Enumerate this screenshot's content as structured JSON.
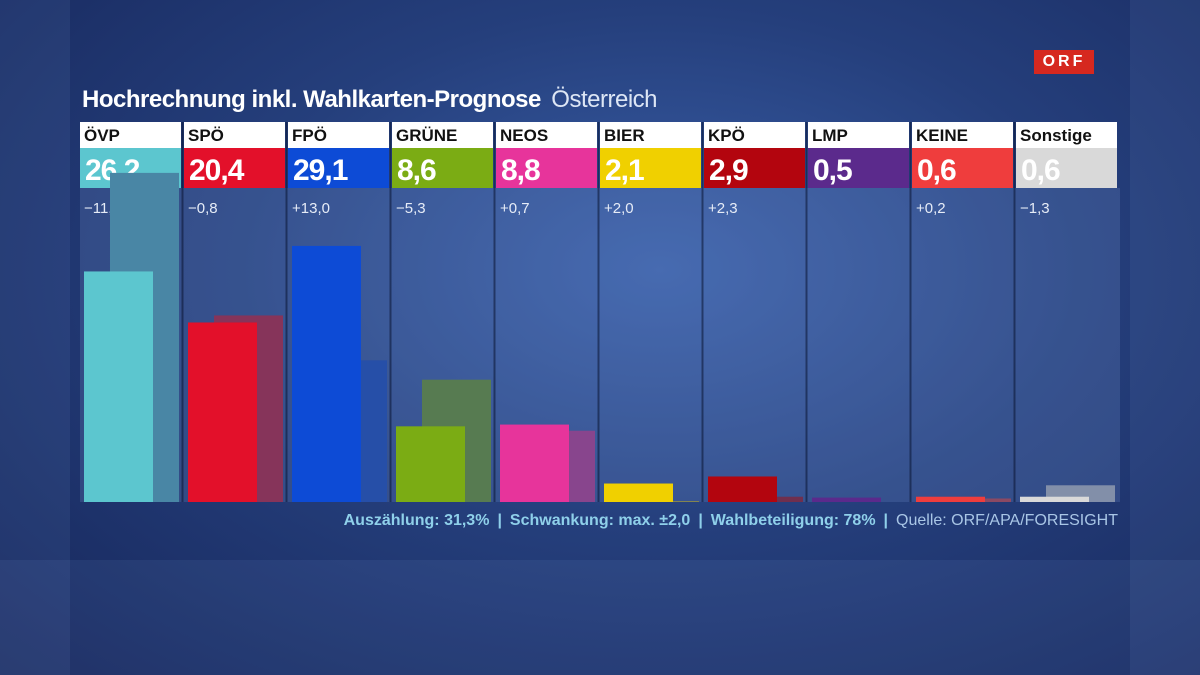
{
  "logo": "ORF",
  "title": "Hochrechnung inkl. Wahlkarten-Prognose",
  "subtitle": "Österreich",
  "chart_data": {
    "type": "bar",
    "ylim": [
      0,
      40
    ],
    "categories": [
      "ÖVP",
      "SPÖ",
      "FPÖ",
      "GRÜNE",
      "NEOS",
      "BIER",
      "KPÖ",
      "LMP",
      "KEINE",
      "Sonstige"
    ],
    "value_labels": [
      "26,2",
      "20,4",
      "29,1",
      "8,6",
      "8,8",
      "2,1",
      "2,9",
      "0,5",
      "0,6",
      "0,6"
    ],
    "change_labels": [
      "−11,2",
      "−0,8",
      "+13,0",
      "−5,3",
      "+0,7",
      "+2,0",
      "+2,3",
      "",
      "+0,2",
      "−1,3"
    ],
    "series": [
      {
        "values": [
          26.2,
          20.4,
          29.1,
          8.6,
          8.8,
          2.1,
          2.9,
          0.5,
          0.6,
          0.6
        ]
      },
      {
        "values": [
          37.4,
          21.2,
          16.1,
          13.9,
          8.1,
          0.1,
          0.6,
          null,
          0.4,
          1.9
        ]
      }
    ],
    "colors": [
      "#5cc6cf",
      "#e3102a",
      "#0d4bd6",
      "#7bac14",
      "#e7349b",
      "#f0d000",
      "#b3050e",
      "#5b2a8c",
      "#ef3d3d",
      "#d9d9d9"
    ]
  },
  "footer": {
    "count": "Auszählung: 31,3%",
    "range": "Schwankung: max. ±2,0",
    "turnout": "Wahlbeteiligung: 78%",
    "source": "Quelle: ORF/APA/FORESIGHT"
  }
}
